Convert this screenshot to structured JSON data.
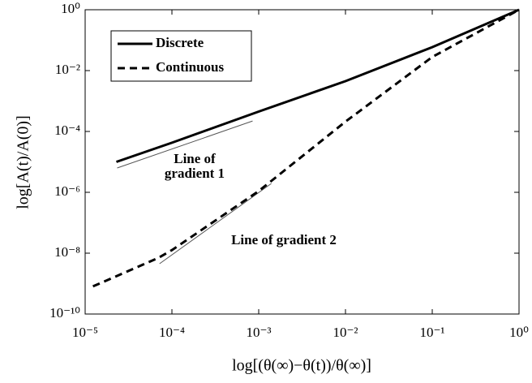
{
  "chart_data": {
    "type": "line",
    "x_label": "log[(θ(∞)−θ(t))/θ(∞)]",
    "y_label": "log[A(t)/A(0)]",
    "xscale": "log",
    "yscale": "log",
    "xlim": [
      1e-05,
      1
    ],
    "ylim": [
      1e-10,
      1
    ],
    "xticks": [
      {
        "value": 1e-05,
        "label": "10⁻⁵"
      },
      {
        "value": 0.0001,
        "label": "10⁻⁴"
      },
      {
        "value": 0.001,
        "label": "10⁻³"
      },
      {
        "value": 0.01,
        "label": "10⁻²"
      },
      {
        "value": 0.1,
        "label": "10⁻¹"
      },
      {
        "value": 1,
        "label": "10⁰"
      }
    ],
    "yticks": [
      {
        "value": 1e-10,
        "label": "10⁻¹⁰"
      },
      {
        "value": 1e-08,
        "label": "10⁻⁸"
      },
      {
        "value": 1e-06,
        "label": "10⁻⁶"
      },
      {
        "value": 0.0001,
        "label": "10⁻⁴"
      },
      {
        "value": 0.01,
        "label": "10⁻²"
      },
      {
        "value": 1,
        "label": "10⁰"
      }
    ],
    "legend": "upper left",
    "series": [
      {
        "name": "Discrete",
        "color": "#000000",
        "line_style": "solid",
        "x": [
          2.29e-05,
          0.0001,
          0.001,
          0.01,
          0.1,
          1
        ],
        "values": [
          1e-05,
          4.27e-05,
          0.00045,
          0.0045,
          0.059,
          1
        ]
      },
      {
        "name": "Continuous",
        "color": "#000000",
        "line_style": "dashed",
        "x": [
          1.23e-05,
          6.9e-05,
          0.0001,
          0.001,
          0.01,
          0.1,
          1
        ],
        "values": [
          8.1e-10,
          6.9e-09,
          1.26e-08,
          1.1e-06,
          0.00021,
          0.028,
          1
        ]
      }
    ],
    "reference_lines": [
      {
        "color": "#555555",
        "x": [
          2.34e-05,
          0.00085
        ],
        "y": [
          6.3e-06,
          0.00022
        ]
      },
      {
        "color": "#555555",
        "x": [
          7.2e-05,
          0.0014
        ],
        "y": [
          4.5e-09,
          1.95e-06
        ]
      }
    ],
    "annotations": [
      "Line of",
      "gradient 1",
      "Line of gradient 2"
    ]
  }
}
